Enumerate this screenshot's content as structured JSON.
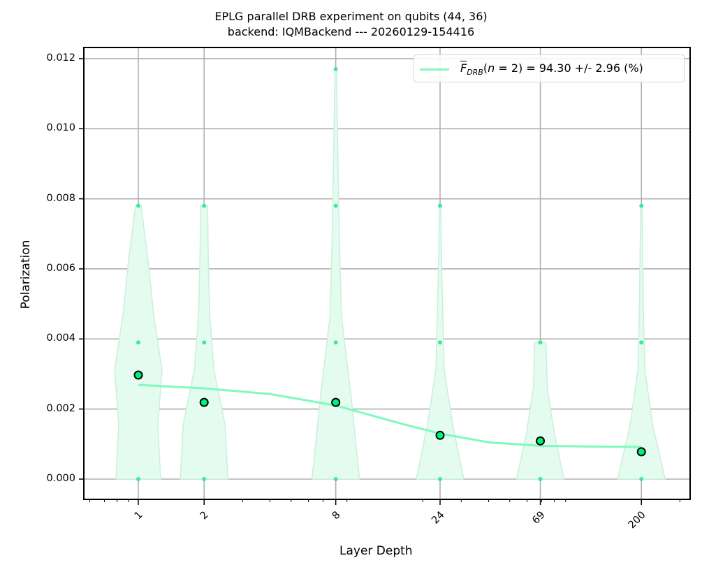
{
  "chart_data": {
    "type": "violin+scatter+line",
    "title": "EPLG parallel DRB experiment on qubits (44, 36)",
    "subtitle": "backend: IQMBackend --- 20260129-154416",
    "xlabel": "Layer Depth",
    "ylabel": "Polarization",
    "xscale": "log",
    "xlim": [
      0.57,
      265
    ],
    "ylim": [
      -0.00057,
      0.01232
    ],
    "grid": true,
    "x_ticks": [
      1,
      2,
      8,
      24,
      69,
      200
    ],
    "x_tick_labels": [
      "1",
      "2",
      "8",
      "24",
      "69",
      "200"
    ],
    "y_ticks": [
      0.0,
      0.002,
      0.004,
      0.006,
      0.008,
      0.01,
      0.012
    ],
    "y_tick_labels": [
      "0.000",
      "0.002",
      "0.004",
      "0.006",
      "0.008",
      "0.010",
      "0.012"
    ],
    "legend": {
      "position": "upper right",
      "entries": [
        {
          "label": "F̄_DRB(n = 2) = 94.30 +/- 2.96 (%)",
          "color": "#7ffabf",
          "style": "line"
        }
      ]
    },
    "colors": {
      "fit_line": "#7ffabf",
      "mean_marker_fill": "#00f07c",
      "mean_marker_edge": "#000000",
      "violin_fill": "#e3fcef",
      "violin_edge": "#c9f0d9",
      "sample_dots": "#3fe89a",
      "grid": "#b0b0b0"
    },
    "mean_points": {
      "x": [
        1,
        2,
        8,
        24,
        69,
        200
      ],
      "y": [
        0.00297,
        0.00219,
        0.00219,
        0.00125,
        0.00109,
        0.00078
      ]
    },
    "fit_curve": {
      "name": "F̄_DRB(n = 2) = 94.30 +/- 2.96 (%)",
      "x": [
        1,
        2,
        4,
        8,
        16,
        24,
        40,
        69,
        120,
        200
      ],
      "y": [
        0.00269,
        0.00259,
        0.00243,
        0.0021,
        0.00158,
        0.0013,
        0.00105,
        0.00095,
        0.00093,
        0.00092
      ]
    },
    "violins": [
      {
        "x": 1,
        "samples": [
          0.0,
          0.0039,
          0.0078
        ],
        "max": 0.0078
      },
      {
        "x": 2,
        "samples": [
          0.0,
          0.0039,
          0.0078
        ],
        "max": 0.0078
      },
      {
        "x": 8,
        "samples": [
          0.0,
          0.0039,
          0.0078,
          0.0117
        ],
        "max": 0.0117
      },
      {
        "x": 24,
        "samples": [
          0.0,
          0.0039,
          0.0078
        ],
        "max": 0.0078
      },
      {
        "x": 69,
        "samples": [
          0.0,
          0.0039
        ],
        "max": 0.0039
      },
      {
        "x": 200,
        "samples": [
          0.0,
          0.0039,
          0.0078
        ],
        "max": 0.0078
      }
    ]
  },
  "legend_text": {
    "f": "F",
    "sub": "DRB",
    "open": "(",
    "n": "n",
    "rest": " = 2) = 94.30 +/- 2.96 (%)"
  }
}
